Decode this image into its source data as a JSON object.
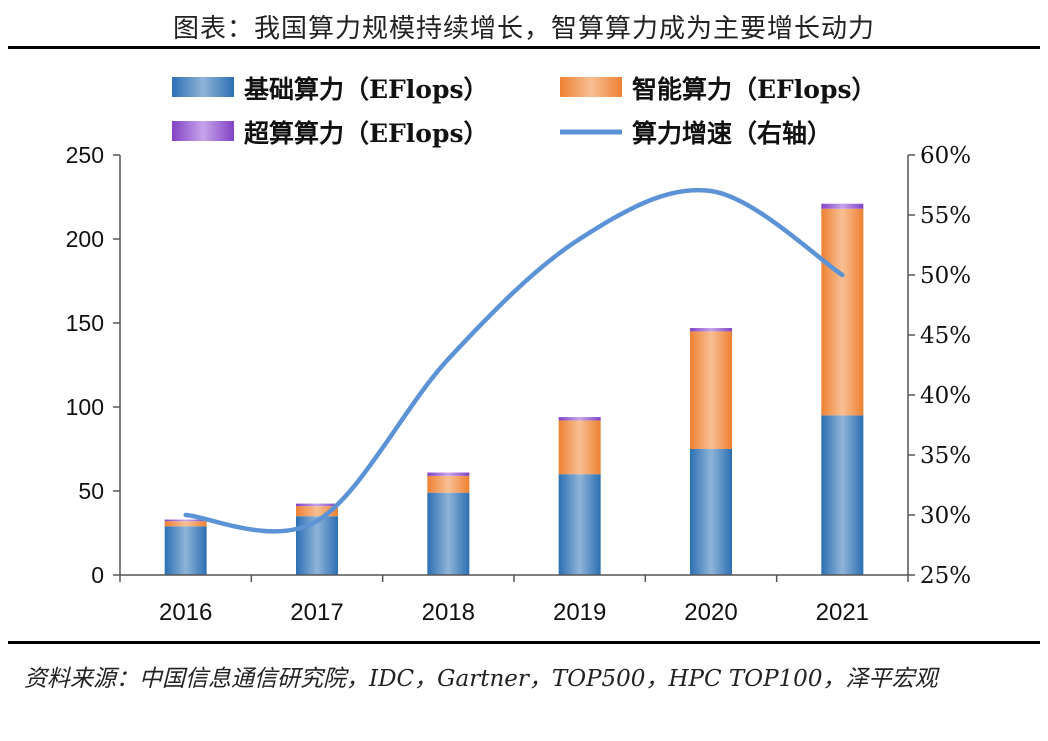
{
  "header": {
    "title": "图表：我国算力规模持续增长，智算算力成为主要增长动力"
  },
  "footer": {
    "source": "资料来源：中国信息通信研究院，IDC，Gartner，TOP500，HPC TOP100，泽平宏观"
  },
  "colors": {
    "basic": "#2f78bd",
    "intelligent": "#f08a3a",
    "super": "#8a4fc8",
    "growth": "#5b93d6"
  },
  "chart_data": {
    "type": "bar",
    "categories": [
      "2016",
      "2017",
      "2018",
      "2019",
      "2020",
      "2021"
    ],
    "series": [
      {
        "name": "基础算力（EFlops）",
        "kind": "bar",
        "stack": "total",
        "axis": "left",
        "values": [
          29,
          35,
          49,
          60,
          75,
          95
        ]
      },
      {
        "name": "智能算力（EFlops）",
        "kind": "bar",
        "stack": "total",
        "axis": "left",
        "values": [
          3,
          6,
          10,
          32,
          70,
          123
        ]
      },
      {
        "name": "超算算力（EFlops）",
        "kind": "bar",
        "stack": "total",
        "axis": "left",
        "values": [
          1,
          1.5,
          2,
          2,
          2,
          3
        ]
      },
      {
        "name": "算力增速（右轴）",
        "kind": "line",
        "axis": "right",
        "values": [
          0.3,
          0.295,
          0.43,
          0.53,
          0.57,
          0.5
        ]
      }
    ],
    "ylim": [
      0,
      250
    ],
    "yticks": [
      "0",
      "50",
      "100",
      "150",
      "200",
      "250"
    ],
    "y2lim": [
      0.25,
      0.6
    ],
    "y2ticks": [
      "25%",
      "30%",
      "35%",
      "40%",
      "45%",
      "50%",
      "55%",
      "60%"
    ],
    "legend_position": "top",
    "grid": false
  }
}
